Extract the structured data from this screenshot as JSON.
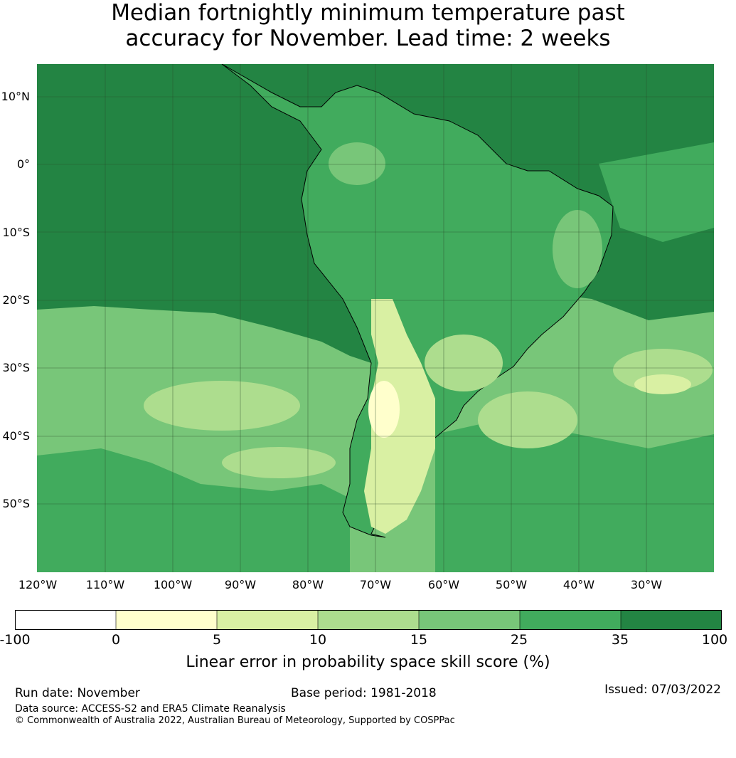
{
  "title": {
    "line1": "Median fortnightly minimum temperature past",
    "line2": "accuracy for November. Lead time: 2 weeks"
  },
  "map": {
    "region": "South America and surrounding ocean",
    "lat_labels": [
      "10°N",
      "0°",
      "10°S",
      "20°S",
      "30°S",
      "40°S",
      "50°S"
    ],
    "lon_labels": [
      "120°W",
      "110°W",
      "100°W",
      "90°W",
      "80°W",
      "70°W",
      "60°W",
      "50°W",
      "40°W",
      "30°W"
    ],
    "extent": {
      "lon": [
        -120,
        -20
      ],
      "lat": [
        -60,
        15
      ]
    },
    "gridlines": true
  },
  "colorbar": {
    "ticks": [
      "-100",
      "0",
      "5",
      "10",
      "15",
      "25",
      "35",
      "100"
    ],
    "colors": [
      "#ffffff",
      "#ffffcc",
      "#d9f0a3",
      "#addd8e",
      "#78c679",
      "#41ab5d",
      "#238443"
    ],
    "label": "Linear error in probability space skill score (%)"
  },
  "footer": {
    "run_date": "Run date: November",
    "base_period": "Base period: 1981-2018",
    "issued": "Issued: 07/03/2022",
    "data_source": "Data source: ACCESS-S2 and ERA5 Climate Reanalysis",
    "copyright": "© Commonwealth of Australia 2022, Australian Bureau of Meteorology, Supported by COSPPac"
  }
}
